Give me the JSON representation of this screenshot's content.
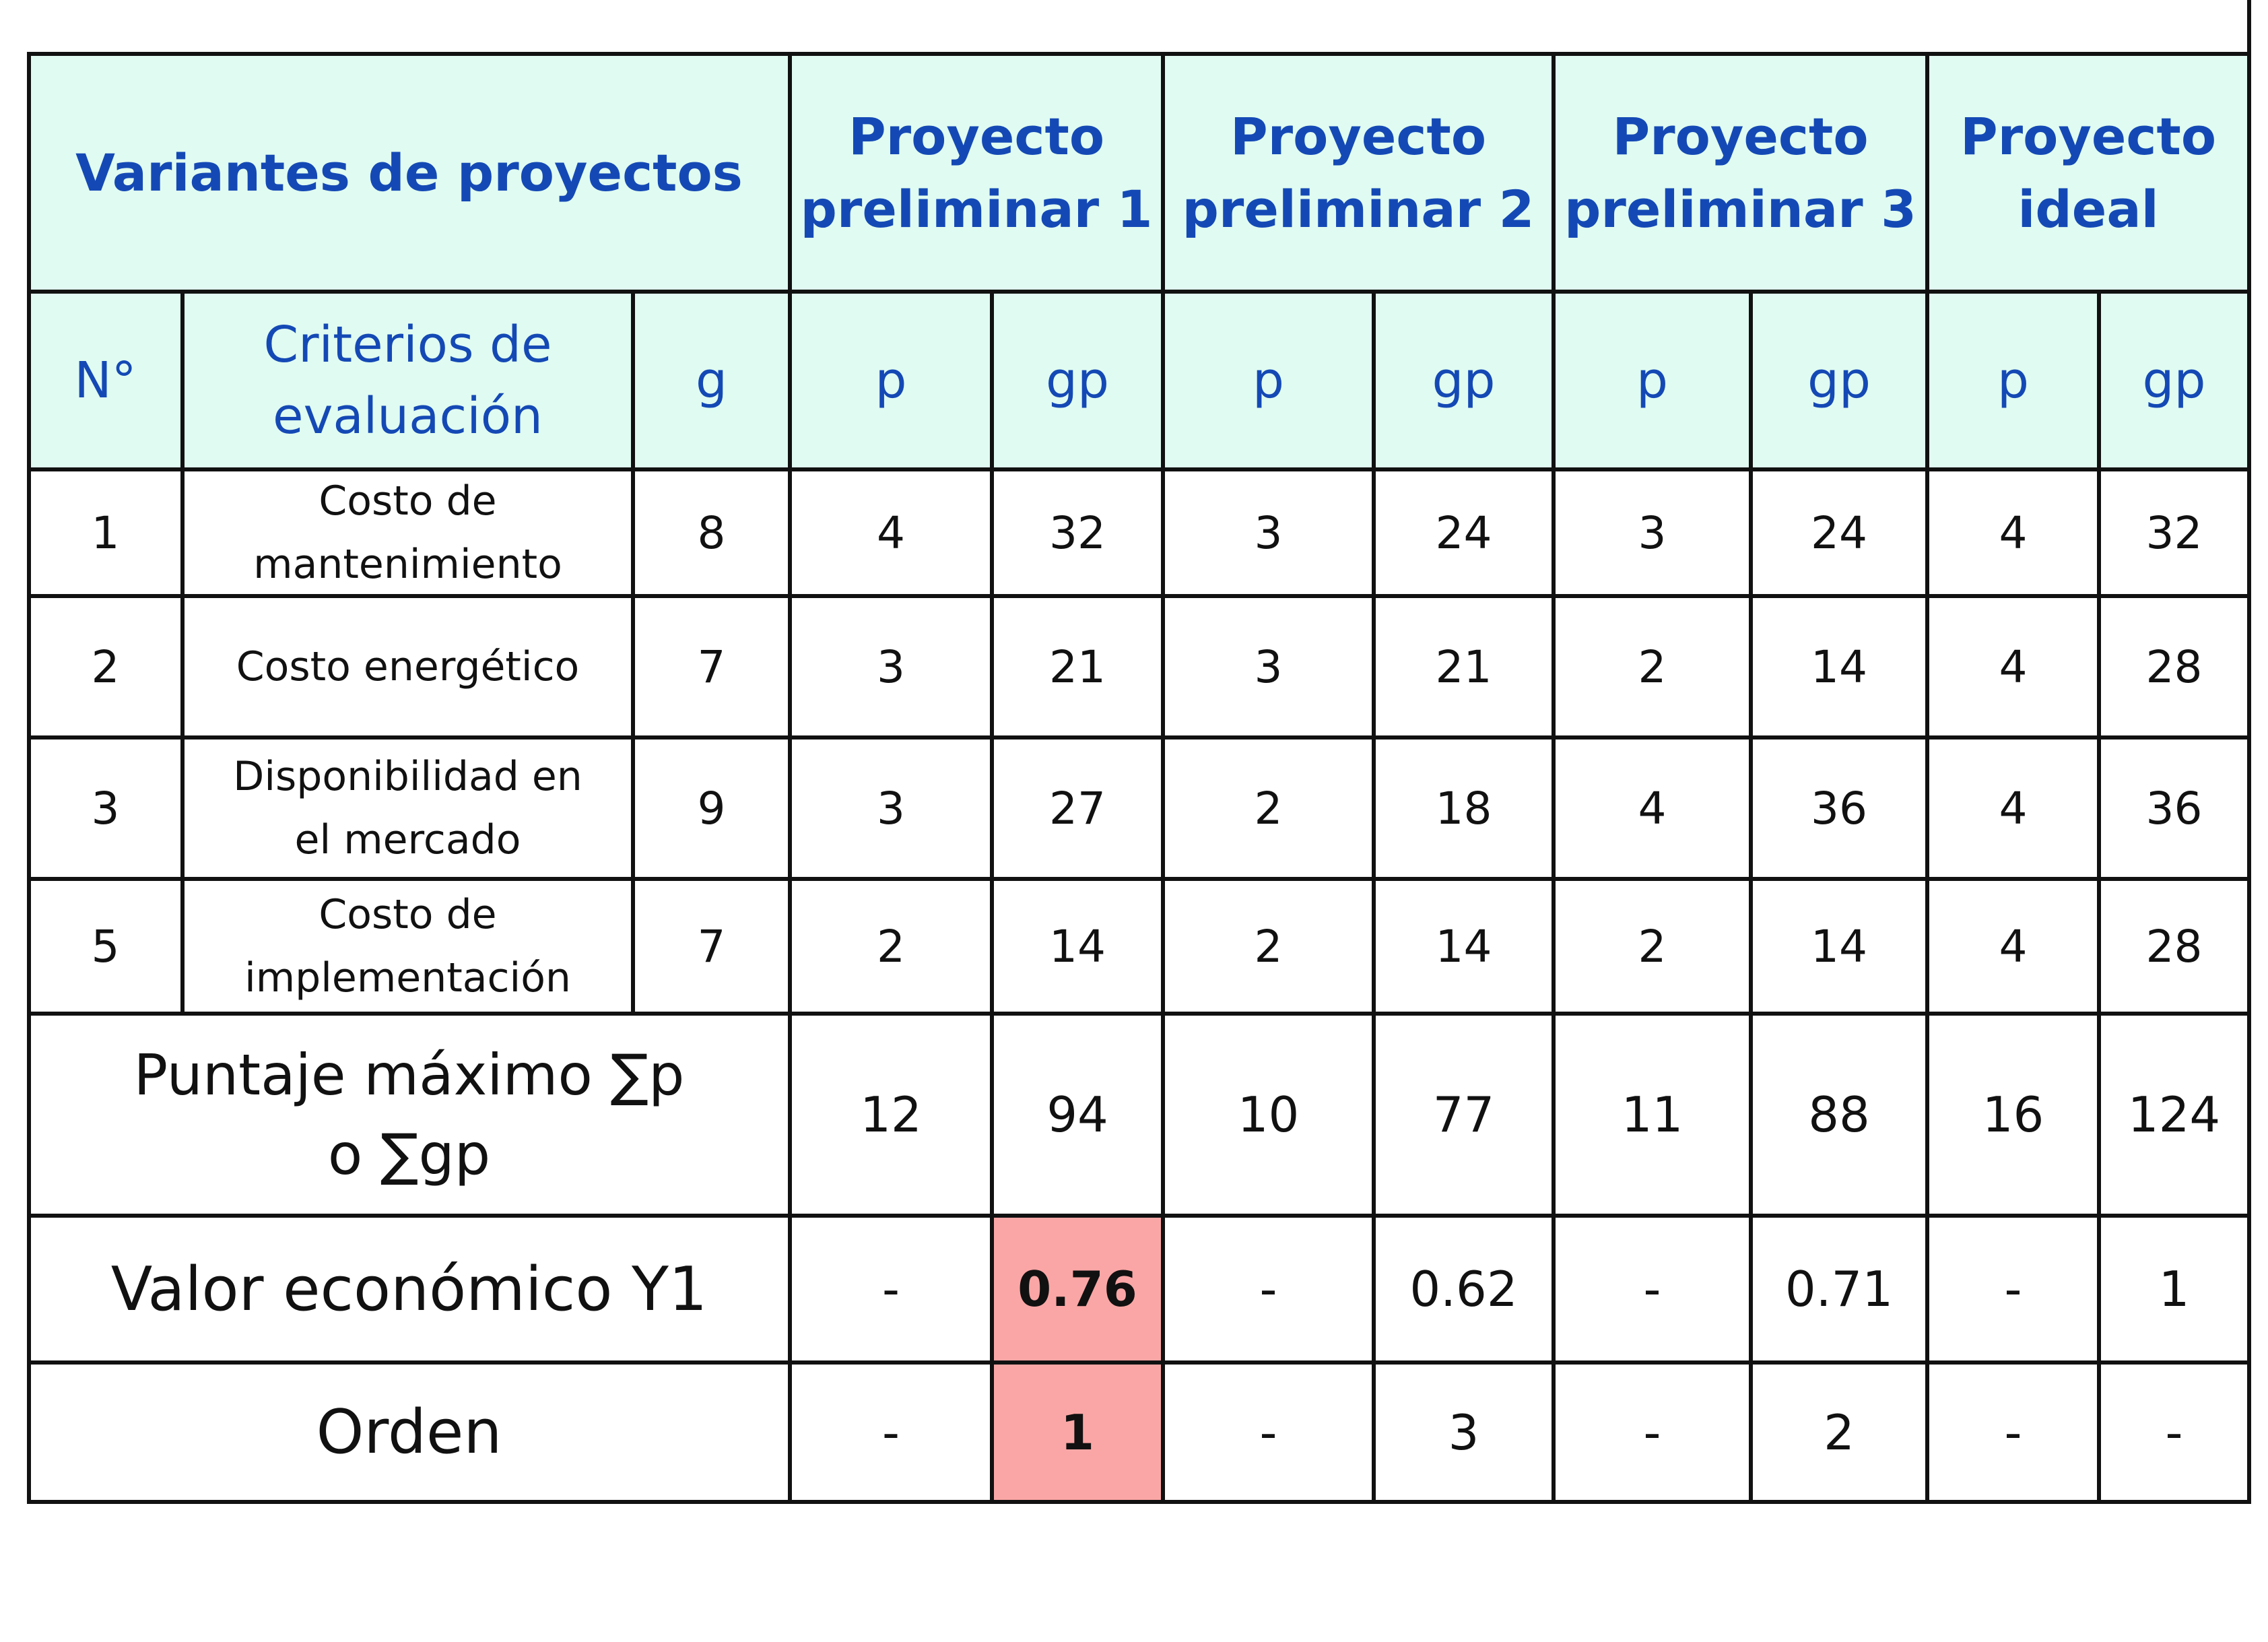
{
  "header": {
    "variantes": "Variantes de proyectos",
    "projects": [
      {
        "line1": "Proyecto",
        "line2": "preliminar 1"
      },
      {
        "line1": "Proyecto",
        "line2": "preliminar 2"
      },
      {
        "line1": "Proyecto",
        "line2": "preliminar 3"
      },
      {
        "line1": "Proyecto",
        "line2": "ideal"
      }
    ],
    "num": "N°",
    "criteria_line1": "Criterios de",
    "criteria_line2": "evaluación",
    "g": "g",
    "p": "p",
    "gp": "gp"
  },
  "rows": [
    {
      "n": "1",
      "c1": "Costo de",
      "c2": "mantenimiento",
      "g": "8",
      "v": [
        "4",
        "32",
        "3",
        "24",
        "3",
        "24",
        "4",
        "32"
      ]
    },
    {
      "n": "2",
      "c1": "Costo energético",
      "c2": "",
      "g": "7",
      "v": [
        "3",
        "21",
        "3",
        "21",
        "2",
        "14",
        "4",
        "28"
      ]
    },
    {
      "n": "3",
      "c1": "Disponibilidad en",
      "c2": "el mercado",
      "g": "9",
      "v": [
        "3",
        "27",
        "2",
        "18",
        "4",
        "36",
        "4",
        "36"
      ]
    },
    {
      "n": "5",
      "c1": "Costo de",
      "c2": "implementación",
      "g": "7",
      "v": [
        "2",
        "14",
        "2",
        "14",
        "2",
        "14",
        "4",
        "28"
      ]
    }
  ],
  "puntaje": {
    "line1": "Puntaje máximo ∑p",
    "line2": "o  ∑gp",
    "v": [
      "12",
      "94",
      "10",
      "77",
      "11",
      "88",
      "16",
      "124"
    ]
  },
  "valor": {
    "label": "Valor económico Y1",
    "v": [
      "-",
      "0.76",
      "-",
      "0.62",
      "-",
      "0.71",
      "-",
      "1"
    ]
  },
  "orden": {
    "label": "Orden",
    "v": [
      "-",
      "1",
      "-",
      "3",
      "-",
      "2",
      "-",
      "-"
    ]
  },
  "colors": {
    "header_bg": "#e0fbf1",
    "header_text": "#1449b5",
    "highlight": "#fba6a6"
  }
}
